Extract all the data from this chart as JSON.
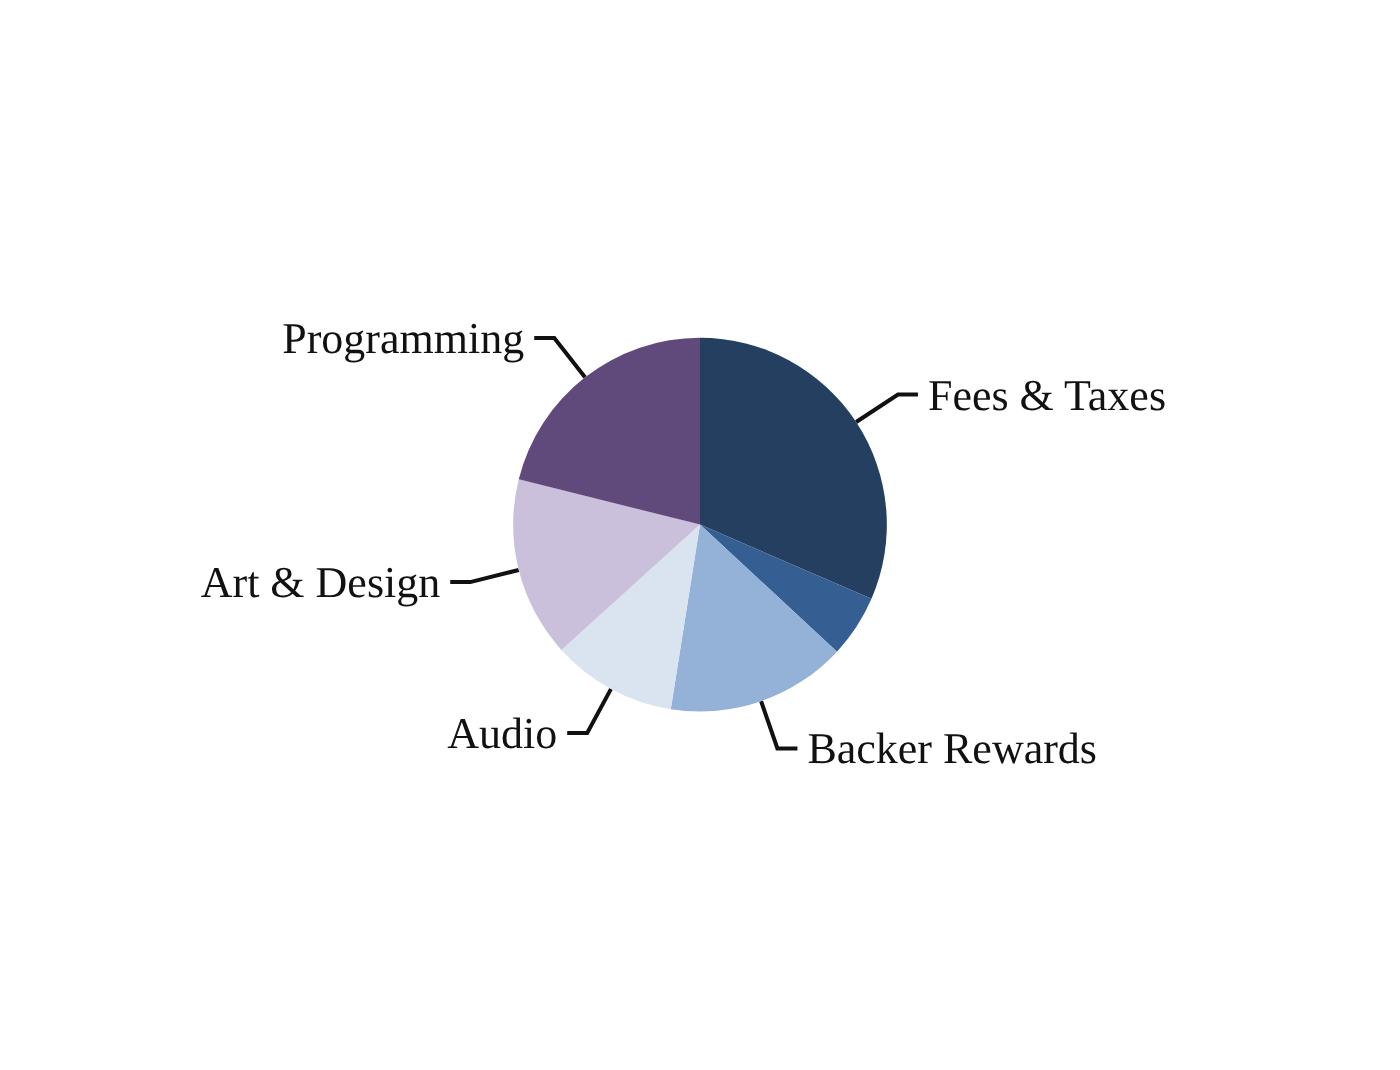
{
  "chart_data": {
    "type": "pie",
    "categories": [
      "Fees & Taxes",
      null,
      "Backer Rewards",
      "Audio",
      "Art & Design",
      "Programming"
    ],
    "values": [
      31.5,
      5.4,
      15.6,
      10.8,
      15.6,
      21.1
    ],
    "colors": [
      "#253f60",
      "#355f92",
      "#94b2d8",
      "#dae4f1",
      "#cac0dc",
      "#604a7b"
    ],
    "legend": false
  }
}
